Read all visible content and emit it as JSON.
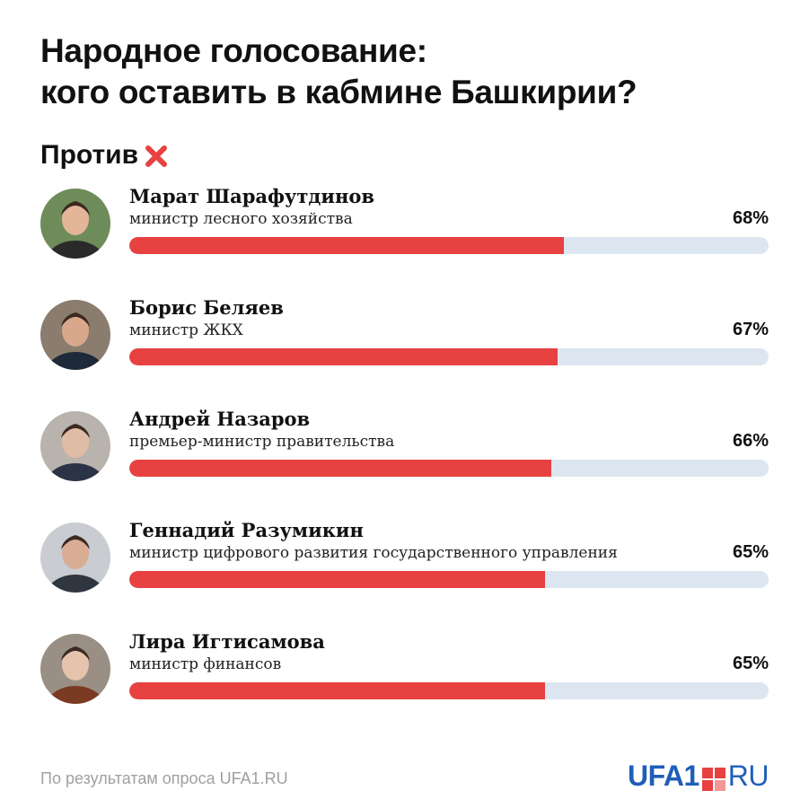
{
  "header": {
    "title_line1": "Народное голосование:",
    "title_line2": "кого оставить в кабмине Башкирии?"
  },
  "section": {
    "label": "Против",
    "icon": "cross-icon",
    "icon_color": "#e84142"
  },
  "colors": {
    "bar_fill": "#e84142",
    "bar_track": "#dce6f1",
    "logo_blue": "#1f5fb8"
  },
  "chart_data": {
    "type": "bar",
    "orientation": "horizontal",
    "xlim": [
      0,
      100
    ],
    "unit": "%",
    "categories": [
      "Марат Шарафутдинов",
      "Борис Беляев",
      "Андрей Назаров",
      "Геннадий Разумикин",
      "Лира Игтисамова"
    ],
    "values": [
      68,
      67,
      66,
      65,
      65
    ],
    "items": [
      {
        "name": "Марат Шарафутдинов",
        "role": "министр лесного хозяйства",
        "value": 68,
        "label": "68%"
      },
      {
        "name": "Борис Беляев",
        "role": "министр ЖКХ",
        "value": 67,
        "label": "67%"
      },
      {
        "name": "Андрей Назаров",
        "role": "премьер-министр правительства",
        "value": 66,
        "label": "66%"
      },
      {
        "name": "Геннадий Разумикин",
        "role": "министр цифрового развития государственного управления",
        "value": 65,
        "label": "65%"
      },
      {
        "name": "Лира Игтисамова",
        "role": "министр финансов",
        "value": 65,
        "label": "65%"
      }
    ]
  },
  "footer": {
    "note": "По результатам опроса UFA1.RU",
    "logo_left": "UFA1",
    "logo_right": "RU"
  }
}
